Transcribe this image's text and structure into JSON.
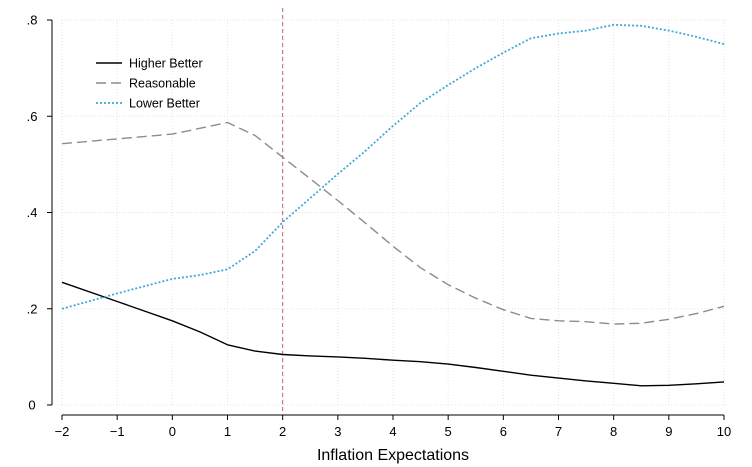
{
  "chart_data": {
    "type": "line",
    "title": "",
    "xlabel": "Inflation Expectations",
    "ylabel": "",
    "xlim": [
      -2,
      10
    ],
    "ylim": [
      0,
      0.8
    ],
    "x_ticks": [
      -2,
      -1,
      0,
      1,
      2,
      3,
      4,
      5,
      6,
      7,
      8,
      9,
      10
    ],
    "x_tick_labels": [
      "−2",
      "−1",
      "0",
      "1",
      "2",
      "3",
      "4",
      "5",
      "6",
      "7",
      "8",
      "9",
      "10"
    ],
    "y_ticks": [
      0,
      0.2,
      0.4,
      0.6,
      0.8
    ],
    "y_tick_labels": [
      "0",
      ".2",
      ".4",
      ".6",
      ".8"
    ],
    "grid": true,
    "legend_position": "top-left",
    "reference_line": {
      "x": 2,
      "color": "#c0607a",
      "style": "dashed"
    },
    "series": [
      {
        "name": "Higher Better",
        "color": "#000000",
        "style": "solid",
        "x": [
          -2,
          -1,
          0,
          0.5,
          1,
          1.5,
          2,
          2.5,
          3,
          3.5,
          4,
          4.5,
          5,
          5.5,
          6,
          6.5,
          7,
          7.5,
          8,
          8.5,
          9,
          9.5,
          10
        ],
        "y": [
          0.255,
          0.215,
          0.175,
          0.152,
          0.125,
          0.112,
          0.105,
          0.102,
          0.1,
          0.097,
          0.093,
          0.09,
          0.085,
          0.078,
          0.07,
          0.062,
          0.056,
          0.05,
          0.045,
          0.04,
          0.041,
          0.044,
          0.048
        ]
      },
      {
        "name": "Reasonable",
        "color": "#8c8c8c",
        "style": "dashed",
        "x": [
          -2,
          -1,
          0,
          0.5,
          1,
          1.5,
          2,
          2.5,
          3,
          3.5,
          4,
          4.5,
          5,
          5.5,
          6,
          6.5,
          7,
          7.5,
          8,
          8.5,
          9,
          9.5,
          10
        ],
        "y": [
          0.543,
          0.553,
          0.563,
          0.575,
          0.587,
          0.56,
          0.515,
          0.47,
          0.425,
          0.378,
          0.33,
          0.285,
          0.25,
          0.222,
          0.198,
          0.18,
          0.175,
          0.173,
          0.168,
          0.17,
          0.178,
          0.19,
          0.205
        ]
      },
      {
        "name": "Lower Better",
        "color": "#3fa9d8",
        "style": "dotted",
        "x": [
          -2,
          -1,
          0,
          0.5,
          1,
          1.5,
          2,
          2.5,
          3,
          3.5,
          4,
          4.5,
          5,
          5.5,
          6,
          6.5,
          7,
          7.5,
          8,
          8.5,
          9,
          9.5,
          10
        ],
        "y": [
          0.2,
          0.232,
          0.262,
          0.27,
          0.282,
          0.32,
          0.38,
          0.43,
          0.48,
          0.528,
          0.58,
          0.628,
          0.665,
          0.7,
          0.732,
          0.762,
          0.772,
          0.778,
          0.79,
          0.788,
          0.778,
          0.765,
          0.75
        ]
      }
    ]
  }
}
